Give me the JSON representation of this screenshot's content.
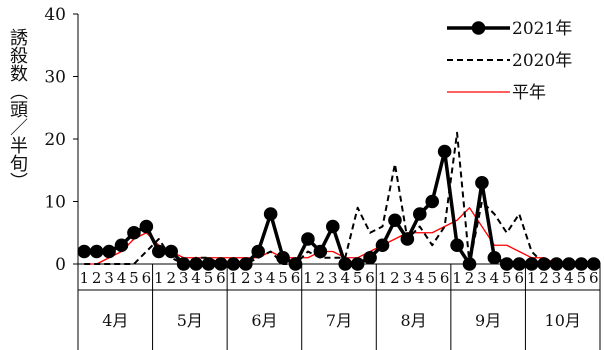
{
  "chart_data": {
    "type": "line",
    "title": "",
    "xlabel": "",
    "ylabel": "誘殺数（頭／半旬）",
    "ylim": [
      0,
      40
    ],
    "yticks": [
      0,
      10,
      20,
      30,
      40
    ],
    "grid": false,
    "legend_position": "top-right",
    "months": [
      "4月",
      "5月",
      "6月",
      "7月",
      "8月",
      "9月",
      "10月"
    ],
    "pentads_per_month": 6,
    "pentad_labels": [
      "1",
      "2",
      "3",
      "4",
      "5",
      "6"
    ],
    "series": [
      {
        "name": "2021年",
        "style": "solid-marker",
        "color": "#000000",
        "values": [
          2,
          2,
          2,
          3,
          5,
          6,
          2,
          2,
          0,
          0,
          0,
          0,
          0,
          0,
          2,
          8,
          1,
          0,
          4,
          2,
          6,
          0,
          0,
          1,
          3,
          7,
          4,
          8,
          10,
          18,
          3,
          0,
          13,
          1,
          0,
          0,
          0,
          0,
          0,
          0,
          0,
          0
        ]
      },
      {
        "name": "2020年",
        "style": "dashed",
        "color": "#000000",
        "values": [
          0,
          0,
          0,
          0,
          0,
          2,
          4,
          1,
          0,
          1,
          1,
          0,
          0,
          0,
          1,
          2,
          0,
          0,
          2,
          1,
          1,
          1,
          9,
          5,
          6,
          16,
          4,
          6,
          3,
          6,
          21,
          0,
          10,
          8,
          5,
          8,
          2,
          0,
          0,
          0,
          0,
          0
        ]
      },
      {
        "name": "平年",
        "style": "thin",
        "color": "#ff0000",
        "values": [
          0,
          0,
          1,
          2,
          4,
          5,
          3,
          2,
          1,
          1,
          1,
          1,
          1,
          1,
          1,
          2,
          1,
          1,
          1,
          2,
          2,
          1,
          1,
          2,
          3,
          4,
          5,
          5,
          5,
          6,
          7,
          9,
          6,
          3,
          3,
          2,
          1,
          1,
          0,
          0,
          0,
          0
        ]
      }
    ]
  }
}
